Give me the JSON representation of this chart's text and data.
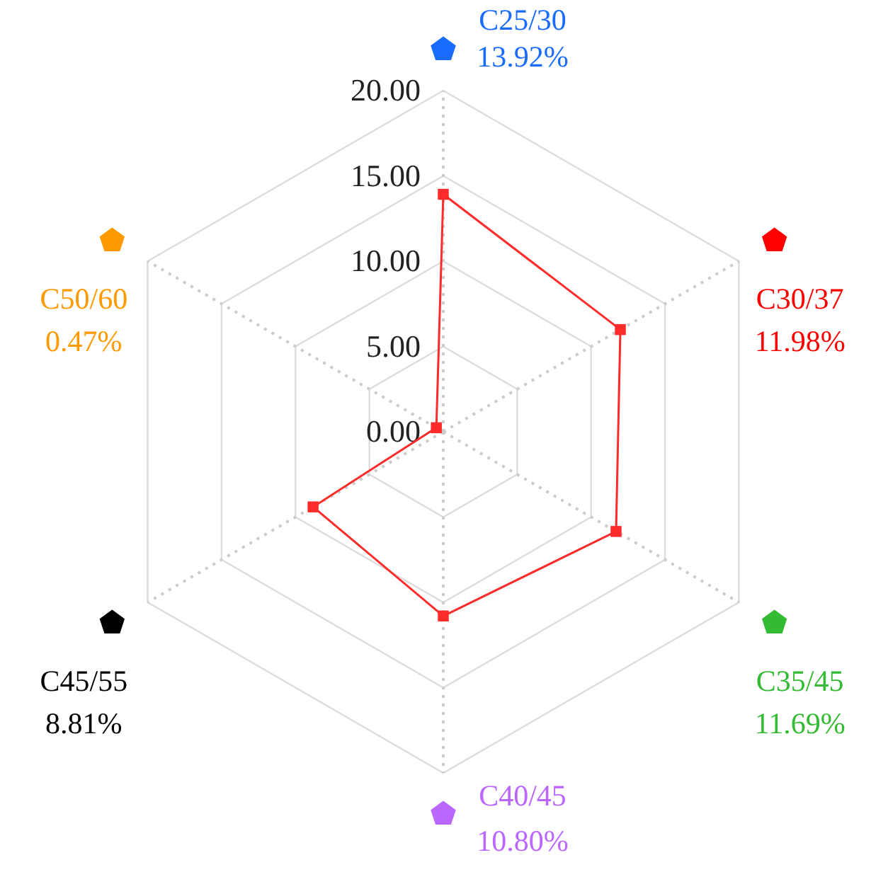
{
  "chart_data": {
    "type": "radar",
    "categories": [
      "C25/30",
      "C30/37",
      "C35/45",
      "C40/45",
      "C45/55",
      "C50/60"
    ],
    "colors": [
      "#1a6cff",
      "#ff0000",
      "#33bb33",
      "#bb66ff",
      "#000000",
      "#ff9900"
    ],
    "series": [
      {
        "color": "#ff2a2a",
        "values": [
          13.92,
          11.98,
          11.69,
          10.8,
          8.81,
          0.47
        ]
      }
    ],
    "annotations": [
      "13.92%",
      "11.98%",
      "11.69%",
      "10.80%",
      "8.81%",
      "0.47%"
    ],
    "ylim": [
      0,
      20
    ],
    "yticks": [
      {
        "value": 0,
        "label": "0.00"
      },
      {
        "value": 5,
        "label": "5.00"
      },
      {
        "value": 10,
        "label": "10.00"
      },
      {
        "value": 15,
        "label": "15.00"
      },
      {
        "value": 20,
        "label": "20.00"
      }
    ],
    "grid": true,
    "marker": "square",
    "line_style": "solid"
  }
}
